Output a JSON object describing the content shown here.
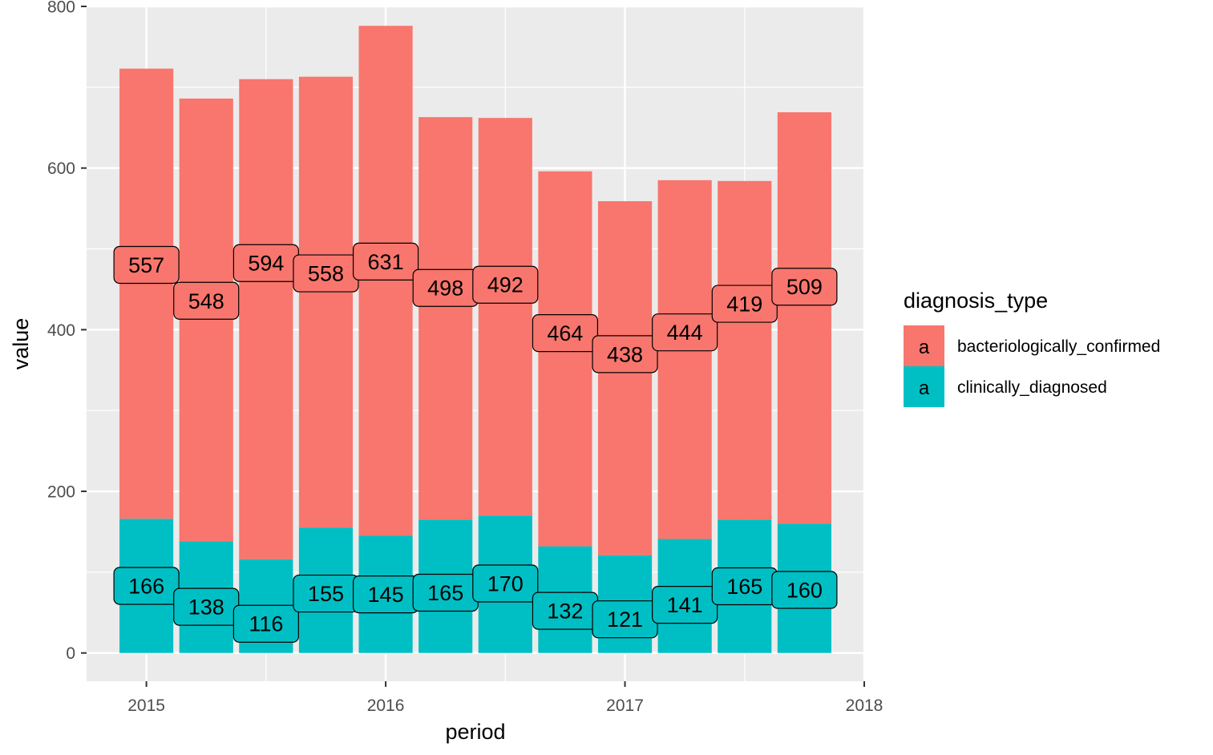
{
  "chart_data": {
    "type": "bar",
    "stacked": true,
    "title": "",
    "xlabel": "period",
    "ylabel": "value",
    "x": [
      2015.0,
      2015.25,
      2015.5,
      2015.75,
      2016.0,
      2016.25,
      2016.5,
      2016.75,
      2017.0,
      2017.25,
      2017.5,
      2017.75
    ],
    "series": [
      {
        "name": "clinically_diagnosed",
        "color": "#00BFC4",
        "values": [
          166,
          138,
          116,
          155,
          145,
          165,
          170,
          132,
          121,
          141,
          165,
          160
        ]
      },
      {
        "name": "bacteriologically_confirmed",
        "color": "#F8766D",
        "values": [
          557,
          548,
          594,
          558,
          631,
          498,
          492,
          464,
          438,
          444,
          419,
          509
        ]
      }
    ],
    "xlim": [
      2014.75,
      2018.0
    ],
    "ylim": [
      -35,
      800
    ],
    "x_ticks": [
      "2015",
      "2016",
      "2017",
      "2018"
    ],
    "y_ticks": [
      "0",
      "200",
      "400",
      "600",
      "800"
    ],
    "grid": true,
    "panel_background": "#EBEBEB",
    "legend": {
      "title": "diagnosis_type",
      "position": "right",
      "key_glyph": "a",
      "entries": [
        {
          "label": "bacteriologically_confirmed",
          "color": "#F8766D"
        },
        {
          "label": "clinically_diagnosed",
          "color": "#00BFC4"
        }
      ]
    }
  }
}
